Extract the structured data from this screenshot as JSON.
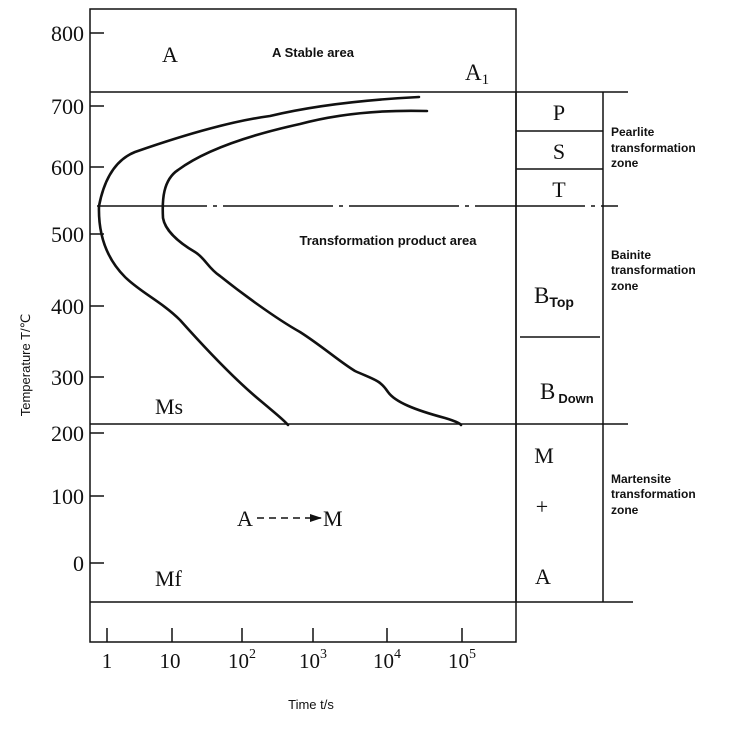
{
  "axes": {
    "ylabel": "Temperature T/℃",
    "xlabel": "Time t/s",
    "yticks": [
      "800",
      "700",
      "600",
      "500",
      "400",
      "300",
      "200",
      "100",
      "0"
    ],
    "xticks": [
      {
        "base": "1",
        "exp": ""
      },
      {
        "base": "10",
        "exp": ""
      },
      {
        "base": "10",
        "exp": "2"
      },
      {
        "base": "10",
        "exp": "3"
      },
      {
        "base": "10",
        "exp": "4"
      },
      {
        "base": "10",
        "exp": "5"
      }
    ]
  },
  "regions": {
    "austenite": "A",
    "stable_area": "A Stable area",
    "a1_main": "A",
    "a1_sub": "1",
    "product_area": "Transformation product area",
    "ms": "Ms",
    "mf": "Mf",
    "conversion_from": "A",
    "conversion_to": "M"
  },
  "column": {
    "p": "P",
    "s": "S",
    "t": "T",
    "b_top_main": "B",
    "b_top_sub": "Top",
    "b_down_main": "B",
    "b_down_sub": "Down",
    "m": "M",
    "plus": "+",
    "a": "A"
  },
  "zones": {
    "pearlite": [
      "Pearlite",
      "transformation",
      "zone"
    ],
    "bainite": [
      "Bainite",
      "transformation",
      "zone"
    ],
    "martensite": [
      "Martensite",
      "transformation",
      "zone"
    ]
  }
}
